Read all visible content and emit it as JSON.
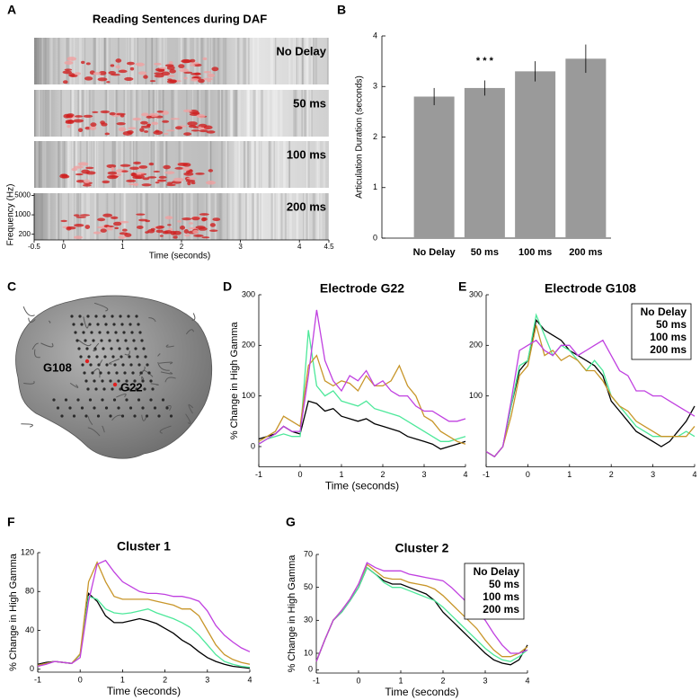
{
  "chart_data": [
    {
      "type": "spectrogram",
      "panel_label": "A",
      "title": "Reading Sentences during DAF",
      "rows": [
        {
          "label": "No Delay",
          "color": "#000000"
        },
        {
          "label": "50 ms",
          "color": "#4de89a"
        },
        {
          "label": "100 ms",
          "color": "#c8962a"
        },
        {
          "label": "200 ms",
          "color": "#c040e0"
        }
      ],
      "xlabel": "Time (seconds)",
      "ylabel": "Frequency (Hz)",
      "xlim": [
        -0.5,
        4.5
      ],
      "xticks": [
        -0.5,
        0,
        1,
        2,
        3,
        4,
        4.5
      ],
      "ylim": [
        125,
        6000
      ],
      "yticks": [
        200,
        1000,
        5000
      ],
      "ylog": true
    },
    {
      "type": "bar",
      "panel_label": "B",
      "ylabel": "Articulation Duration (seconds)",
      "categories": [
        "No Delay",
        "50 ms",
        "100 ms",
        "200 ms"
      ],
      "category_colors": [
        "#000000",
        "#4de89a",
        "#c8962a",
        "#c040e0"
      ],
      "values": [
        2.8,
        2.97,
        3.3,
        3.55
      ],
      "errors": [
        0.17,
        0.15,
        0.2,
        0.28
      ],
      "color": "#9a9a9a",
      "ylim": [
        0,
        4
      ],
      "yticks": [
        0,
        1,
        2,
        3,
        4
      ],
      "annotation": "* * *"
    },
    {
      "type": "brain",
      "panel_label": "C",
      "labels": [
        "G108",
        "G22"
      ]
    },
    {
      "type": "line",
      "panel_label": "D",
      "title": "Electrode G22",
      "xlabel": "Time (seconds)",
      "ylabel": "% Change in High Gamma",
      "x": [
        -1,
        -0.8,
        -0.6,
        -0.4,
        -0.2,
        0,
        0.2,
        0.4,
        0.6,
        0.8,
        1,
        1.2,
        1.4,
        1.6,
        1.8,
        2,
        2.2,
        2.4,
        2.6,
        2.8,
        3,
        3.2,
        3.4,
        3.6,
        3.8,
        4
      ],
      "xlim": [
        -1,
        4
      ],
      "xticks": [
        -1,
        0,
        1,
        2,
        3,
        4
      ],
      "ylim": [
        -40,
        300
      ],
      "yticks": [
        0,
        100,
        200,
        300
      ],
      "series": [
        {
          "color": "#000000",
          "values": [
            15,
            20,
            25,
            40,
            30,
            25,
            90,
            85,
            70,
            75,
            60,
            55,
            50,
            55,
            45,
            40,
            35,
            30,
            20,
            15,
            10,
            5,
            -5,
            0,
            5,
            10
          ]
        },
        {
          "color": "#4de89a",
          "values": [
            5,
            15,
            20,
            25,
            20,
            20,
            230,
            120,
            100,
            110,
            90,
            85,
            80,
            90,
            75,
            70,
            65,
            60,
            50,
            40,
            30,
            20,
            10,
            10,
            15,
            20
          ]
        },
        {
          "color": "#c8962a",
          "values": [
            10,
            20,
            30,
            60,
            50,
            40,
            160,
            180,
            130,
            120,
            130,
            125,
            110,
            140,
            120,
            120,
            130,
            160,
            120,
            100,
            60,
            50,
            30,
            20,
            10,
            5
          ]
        },
        {
          "color": "#c040e0",
          "values": [
            5,
            15,
            25,
            40,
            30,
            30,
            140,
            270,
            170,
            130,
            110,
            140,
            130,
            150,
            120,
            130,
            110,
            100,
            100,
            80,
            70,
            70,
            60,
            50,
            50,
            55
          ]
        }
      ]
    },
    {
      "type": "line",
      "panel_label": "E",
      "title": "Electrode G108",
      "x": [
        -1,
        -0.8,
        -0.6,
        -0.4,
        -0.2,
        0,
        0.2,
        0.4,
        0.6,
        0.8,
        1,
        1.2,
        1.4,
        1.6,
        1.8,
        2,
        2.2,
        2.4,
        2.6,
        2.8,
        3,
        3.2,
        3.4,
        3.6,
        3.8,
        4
      ],
      "xlim": [
        -1,
        4
      ],
      "xticks": [
        -1,
        0,
        1,
        2,
        3,
        4
      ],
      "ylim": [
        -40,
        300
      ],
      "yticks": [
        100,
        200,
        300
      ],
      "legend": "upper right",
      "series": [
        {
          "name": "No Delay",
          "color": "#000000",
          "values": [
            -10,
            -20,
            0,
            80,
            150,
            170,
            250,
            230,
            220,
            210,
            190,
            180,
            170,
            160,
            140,
            90,
            70,
            50,
            30,
            20,
            10,
            0,
            10,
            30,
            50,
            80
          ]
        },
        {
          "name": "50 ms",
          "color": "#4de89a",
          "values": [
            -10,
            -20,
            0,
            80,
            160,
            170,
            260,
            220,
            180,
            200,
            190,
            170,
            150,
            170,
            150,
            100,
            80,
            60,
            40,
            30,
            20,
            20,
            20,
            20,
            30,
            20
          ]
        },
        {
          "name": "100 ms",
          "color": "#c8962a",
          "values": [
            -10,
            -20,
            0,
            60,
            140,
            160,
            240,
            180,
            190,
            170,
            180,
            170,
            150,
            150,
            130,
            100,
            80,
            70,
            50,
            40,
            30,
            20,
            20,
            20,
            20,
            40
          ]
        },
        {
          "name": "200 ms",
          "color": "#c040e0",
          "values": [
            -10,
            -20,
            0,
            90,
            190,
            200,
            210,
            190,
            180,
            200,
            200,
            180,
            190,
            200,
            210,
            180,
            150,
            140,
            110,
            110,
            100,
            100,
            90,
            80,
            70,
            60
          ]
        }
      ]
    },
    {
      "type": "line",
      "panel_label": "F",
      "title": "Cluster 1",
      "xlabel": "Time (seconds)",
      "ylabel": "% Change in High Gamma",
      "x": [
        -1,
        -0.8,
        -0.6,
        -0.4,
        -0.2,
        0,
        0.2,
        0.4,
        0.6,
        0.8,
        1,
        1.2,
        1.4,
        1.6,
        1.8,
        2,
        2.2,
        2.4,
        2.6,
        2.8,
        3,
        3.2,
        3.4,
        3.6,
        3.8,
        4
      ],
      "xlim": [
        -1,
        4
      ],
      "xticks": [
        -1,
        0,
        1,
        2,
        3,
        4
      ],
      "ylim": [
        -3,
        120
      ],
      "yticks": [
        0,
        40,
        80,
        120
      ],
      "series": [
        {
          "color": "#000000",
          "values": [
            5,
            7,
            8,
            7,
            6,
            15,
            78,
            70,
            55,
            48,
            48,
            50,
            52,
            50,
            47,
            42,
            37,
            30,
            25,
            18,
            12,
            8,
            5,
            3,
            2,
            1
          ]
        },
        {
          "color": "#4de89a",
          "values": [
            4,
            6,
            8,
            7,
            6,
            15,
            75,
            72,
            62,
            58,
            57,
            58,
            60,
            62,
            58,
            55,
            52,
            48,
            43,
            35,
            25,
            15,
            8,
            5,
            3,
            2
          ]
        },
        {
          "color": "#c8962a",
          "values": [
            4,
            6,
            8,
            7,
            6,
            16,
            90,
            110,
            90,
            75,
            72,
            72,
            72,
            72,
            70,
            68,
            66,
            62,
            62,
            55,
            40,
            25,
            15,
            10,
            7,
            5
          ]
        },
        {
          "color": "#c040e0",
          "values": [
            3,
            5,
            8,
            7,
            6,
            12,
            70,
            108,
            112,
            100,
            90,
            85,
            80,
            78,
            78,
            77,
            75,
            75,
            73,
            70,
            60,
            45,
            35,
            28,
            22,
            18
          ]
        }
      ]
    },
    {
      "type": "line",
      "panel_label": "G",
      "title": "Cluster 2",
      "xlabel": "Time (seconds)",
      "ylabel": "% Change in High Gamma",
      "x": [
        -1,
        -0.8,
        -0.6,
        -0.4,
        -0.2,
        0,
        0.2,
        0.4,
        0.6,
        0.8,
        1,
        1.2,
        1.4,
        1.6,
        1.8,
        2,
        2.2,
        2.4,
        2.6,
        2.8,
        3,
        3.2,
        3.4,
        3.6,
        3.8,
        4
      ],
      "xlim": [
        -1,
        4
      ],
      "xticks": [
        -1,
        0,
        1,
        2,
        3,
        4
      ],
      "ylim": [
        -2,
        70
      ],
      "yticks": [
        0,
        10,
        30,
        50,
        70
      ],
      "legend": "upper right",
      "series": [
        {
          "name": "No Delay",
          "color": "#000000",
          "values": [
            5,
            18,
            30,
            35,
            42,
            50,
            62,
            58,
            54,
            52,
            52,
            50,
            48,
            46,
            42,
            35,
            30,
            25,
            20,
            15,
            10,
            6,
            4,
            3,
            6,
            15
          ]
        },
        {
          "name": "50 ms",
          "color": "#4de89a",
          "values": [
            5,
            18,
            30,
            35,
            42,
            50,
            62,
            58,
            53,
            50,
            50,
            48,
            46,
            44,
            42,
            38,
            33,
            28,
            23,
            18,
            13,
            9,
            6,
            5,
            8,
            12
          ]
        },
        {
          "name": "100 ms",
          "color": "#c8962a",
          "values": [
            5,
            18,
            30,
            36,
            43,
            52,
            64,
            60,
            56,
            55,
            55,
            53,
            52,
            51,
            49,
            45,
            40,
            35,
            30,
            25,
            18,
            12,
            8,
            8,
            10,
            14
          ]
        },
        {
          "name": "200 ms",
          "color": "#c040e0",
          "values": [
            5,
            18,
            30,
            36,
            43,
            52,
            65,
            62,
            60,
            60,
            60,
            58,
            57,
            56,
            55,
            54,
            50,
            45,
            40,
            35,
            30,
            22,
            15,
            10,
            10,
            12
          ]
        }
      ]
    }
  ]
}
